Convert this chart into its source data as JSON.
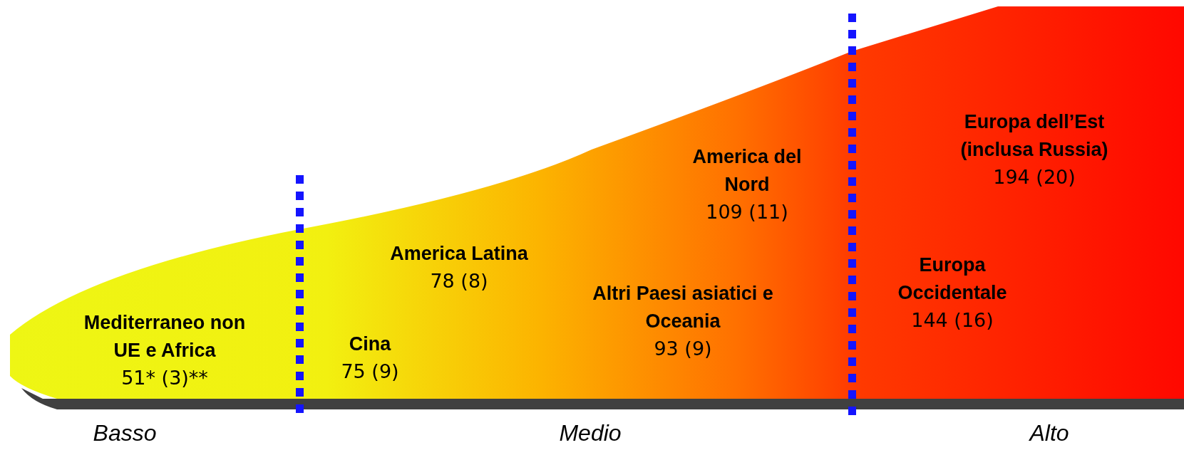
{
  "chart_data": {
    "type": "other",
    "categories": [
      "Mediterraneo non UE e Africa",
      "Cina",
      "America Latina",
      "Altri Paesi asiatici e Oceania",
      "America del Nord",
      "Europa Occidentale",
      "Europa dell’Est (inclusa Russia)"
    ],
    "values": [
      51,
      75,
      78,
      93,
      109,
      144,
      194
    ],
    "value_labels": [
      "51* (3)**",
      "75 (9)",
      "78 (8)",
      "93 (9)",
      "109 (11)",
      "144 (16)",
      "194 (20)"
    ],
    "annotations": [
      "Basso",
      "Medio",
      "Alto"
    ]
  }
}
